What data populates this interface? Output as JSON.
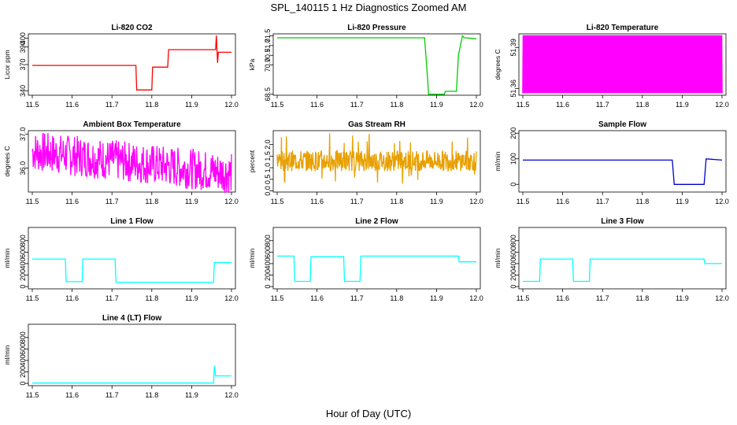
{
  "title": "SPL_140115 1 Hz Diagnostics Zoomed AM",
  "xlabel": "Hour of Day (UTC)",
  "chart_data": [
    {
      "type": "line",
      "title": "Li-820 CO2",
      "ylabel": "Licor ppm",
      "xlim": [
        11.5,
        12.0
      ],
      "ylim": [
        335,
        405
      ],
      "x_ticks": [
        "11.5",
        "11.6",
        "11.7",
        "11.8",
        "11.9",
        "12.0"
      ],
      "y_ticks": [
        340,
        370,
        390,
        400
      ],
      "color": "#ff0000",
      "x": [
        11.5,
        11.76,
        11.762,
        11.8,
        11.802,
        11.84,
        11.842,
        11.96,
        11.962,
        11.965,
        11.967,
        12.0
      ],
      "y": [
        369,
        369,
        341,
        341,
        367,
        367,
        387,
        387,
        403,
        372,
        384,
        384
      ]
    },
    {
      "type": "line",
      "title": "Li-820 Pressure",
      "ylabel": "kPa",
      "xlim": [
        11.5,
        12.0
      ],
      "ylim": [
        68.45,
        71.6
      ],
      "x_ticks": [
        "11.5",
        "11.6",
        "11.7",
        "11.8",
        "11.9",
        "12.0"
      ],
      "y_ticks": [
        "68.5",
        "70.0",
        "70.5",
        "71.0",
        "71.5"
      ],
      "color": "#00cc00",
      "x": [
        11.5,
        11.87,
        11.875,
        11.88,
        11.92,
        11.922,
        11.95,
        11.955,
        11.965,
        11.97,
        12.0
      ],
      "y": [
        71.4,
        71.4,
        70.0,
        68.5,
        68.5,
        68.65,
        68.65,
        70.5,
        71.5,
        71.4,
        71.35
      ]
    },
    {
      "type": "line",
      "title": "Li-820 Temperature",
      "ylabel": "degrees C",
      "xlim": [
        11.5,
        12.0
      ],
      "ylim": [
        51.355,
        51.4
      ],
      "x_ticks": [
        "11.5",
        "11.6",
        "11.7",
        "11.8",
        "11.9",
        "12.0"
      ],
      "y_ticks": [
        "51.36",
        "51.39"
      ],
      "color": "#ff00ff",
      "x": [
        11.5,
        12.0
      ],
      "y": [
        51.36,
        51.4
      ]
    },
    {
      "type": "line",
      "title": "Ambient Box Temperature",
      "ylabel": "degrees C",
      "xlim": [
        11.5,
        12.0
      ],
      "ylim": [
        35.3,
        37.1
      ],
      "x_ticks": [
        "11.5",
        "11.6",
        "11.7",
        "11.8",
        "11.9",
        "12.0"
      ],
      "y_ticks": [
        "36.0",
        "37.0"
      ],
      "color": "#ff00ff",
      "x": [
        11.5,
        11.6,
        11.7,
        11.8,
        11.9,
        12.0
      ],
      "y": [
        36.5,
        36.4,
        36.2,
        36.0,
        35.9,
        35.9
      ]
    },
    {
      "type": "line",
      "title": "Gas Stream RH",
      "ylabel": "percent",
      "xlim": [
        11.5,
        12.0
      ],
      "ylim": [
        -0.05,
        2.6
      ],
      "x_ticks": [
        "11.5",
        "11.6",
        "11.7",
        "11.8",
        "11.9",
        "12.0"
      ],
      "y_ticks": [
        "0.0",
        "0.5",
        "1.0",
        "1.5",
        "2.0"
      ],
      "color": "#e8a000",
      "x": [
        11.5,
        12.0
      ],
      "y": [
        1.3,
        1.3
      ]
    },
    {
      "type": "line",
      "title": "Sample Flow",
      "ylabel": "ml/min",
      "xlim": [
        11.5,
        12.0
      ],
      "ylim": [
        -30,
        210
      ],
      "x_ticks": [
        "11.5",
        "11.6",
        "11.7",
        "11.8",
        "11.9",
        "12.0"
      ],
      "y_ticks": [
        0,
        100,
        200
      ],
      "color": "#0000cc",
      "x": [
        11.5,
        11.875,
        11.88,
        11.955,
        11.96,
        12.0
      ],
      "y": [
        95,
        95,
        0,
        0,
        100,
        95
      ]
    },
    {
      "type": "line",
      "title": "Line 1 Flow",
      "ylabel": "ml/min",
      "xlim": [
        11.5,
        12.0
      ],
      "ylim": [
        -40,
        1030
      ],
      "x_ticks": [
        "11.5",
        "11.6",
        "11.7",
        "11.8",
        "11.9",
        "12.0"
      ],
      "y_ticks": [
        0,
        200,
        400,
        600,
        800
      ],
      "color": "#00ffff",
      "x": [
        11.5,
        11.583,
        11.585,
        11.625,
        11.627,
        11.708,
        11.71,
        11.955,
        11.957,
        12.0
      ],
      "y": [
        480,
        480,
        85,
        85,
        480,
        480,
        75,
        75,
        420,
        420
      ]
    },
    {
      "type": "line",
      "title": "Line 2 Flow",
      "ylabel": "ml/min",
      "xlim": [
        11.5,
        12.0
      ],
      "ylim": [
        -40,
        1030
      ],
      "x_ticks": [
        "11.5",
        "11.6",
        "11.7",
        "11.8",
        "11.9",
        "12.0"
      ],
      "y_ticks": [
        0,
        200,
        400,
        600,
        800
      ],
      "color": "#00ffff",
      "x": [
        11.5,
        11.542,
        11.544,
        11.583,
        11.585,
        11.667,
        11.669,
        11.708,
        11.71,
        11.955,
        11.957,
        12.0
      ],
      "y": [
        530,
        530,
        90,
        90,
        520,
        520,
        90,
        90,
        530,
        530,
        430,
        430
      ]
    },
    {
      "type": "line",
      "title": "Line 3 Flow",
      "ylabel": "ml/min",
      "xlim": [
        11.5,
        12.0
      ],
      "ylim": [
        -40,
        1030
      ],
      "x_ticks": [
        "11.5",
        "11.6",
        "11.7",
        "11.8",
        "11.9",
        "12.0"
      ],
      "y_ticks": [
        0,
        200,
        400,
        600,
        800
      ],
      "color": "#00ffff",
      "x": [
        11.5,
        11.542,
        11.544,
        11.625,
        11.627,
        11.667,
        11.669,
        11.955,
        11.957,
        12.0
      ],
      "y": [
        90,
        90,
        480,
        480,
        90,
        90,
        480,
        480,
        400,
        400
      ]
    },
    {
      "type": "line",
      "title": "Line 4 (LT) Flow",
      "ylabel": "ml/min",
      "xlim": [
        11.5,
        12.0
      ],
      "ylim": [
        -40,
        1030
      ],
      "x_ticks": [
        "11.5",
        "11.6",
        "11.7",
        "11.8",
        "11.9",
        "12.0"
      ],
      "y_ticks": [
        0,
        200,
        400,
        600,
        800
      ],
      "color": "#00ffff",
      "x": [
        11.5,
        11.955,
        11.957,
        11.96,
        11.962,
        12.0
      ],
      "y": [
        5,
        5,
        300,
        130,
        130,
        130
      ]
    }
  ]
}
